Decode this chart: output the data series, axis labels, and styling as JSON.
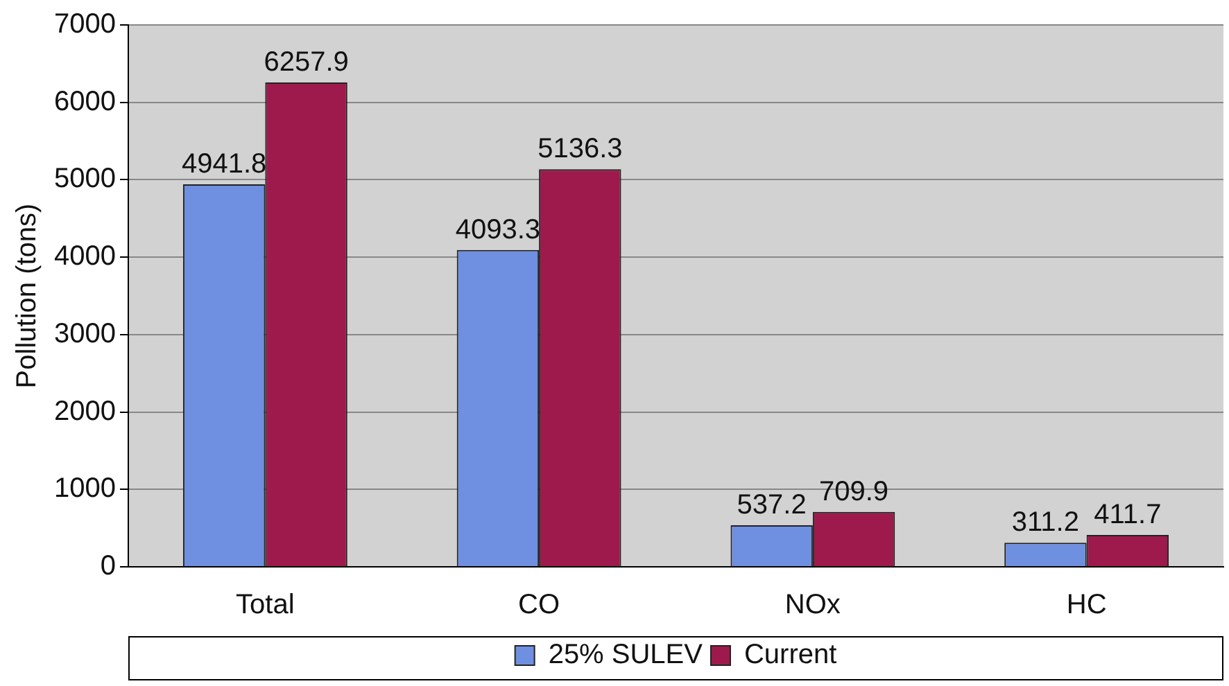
{
  "chart_data": {
    "type": "bar",
    "ylabel": "Pollution (tons)",
    "categories": [
      "Total",
      "CO",
      "NOx",
      "HC"
    ],
    "series": [
      {
        "name": "25% SULEV",
        "color": "#6f8fe0",
        "values": [
          4941.8,
          4093.3,
          537.2,
          311.2
        ]
      },
      {
        "name": "Current",
        "color": "#9e1a4c",
        "values": [
          6257.9,
          5136.3,
          709.9,
          411.7
        ]
      }
    ],
    "ylim": [
      0,
      7000
    ],
    "yticks": [
      0,
      1000,
      2000,
      3000,
      4000,
      5000,
      6000,
      7000
    ],
    "grid": "y",
    "legend": "bottom",
    "data_labels": true
  }
}
